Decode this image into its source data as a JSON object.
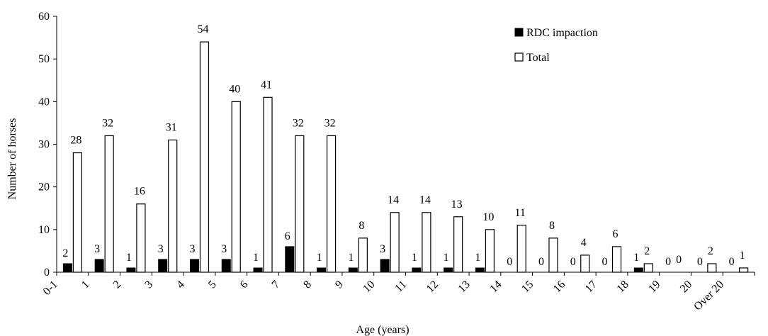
{
  "chart_data": {
    "type": "bar",
    "categories": [
      "0-1",
      "1",
      "2",
      "3",
      "4",
      "5",
      "6",
      "7",
      "8",
      "9",
      "10",
      "11",
      "12",
      "13",
      "14",
      "15",
      "16",
      "17",
      "18",
      "19",
      "20",
      "Over 20"
    ],
    "series": [
      {
        "name": "RDC impaction",
        "values": [
          2,
          3,
          1,
          3,
          3,
          3,
          1,
          6,
          1,
          1,
          3,
          1,
          1,
          1,
          0,
          0,
          0,
          0,
          1,
          0,
          0,
          0
        ],
        "color": "#000000"
      },
      {
        "name": "Total",
        "values": [
          28,
          32,
          16,
          31,
          54,
          40,
          41,
          32,
          32,
          8,
          14,
          14,
          13,
          10,
          11,
          8,
          4,
          6,
          2,
          0,
          2,
          1
        ],
        "color": "#ffffff"
      }
    ],
    "title": "",
    "xlabel": "Age (years)",
    "ylabel": "Number of horses",
    "ylim": [
      0,
      60
    ],
    "yticks": [
      0,
      10,
      20,
      30,
      40,
      50,
      60
    ],
    "grid": false,
    "legend_position": "top-right"
  }
}
